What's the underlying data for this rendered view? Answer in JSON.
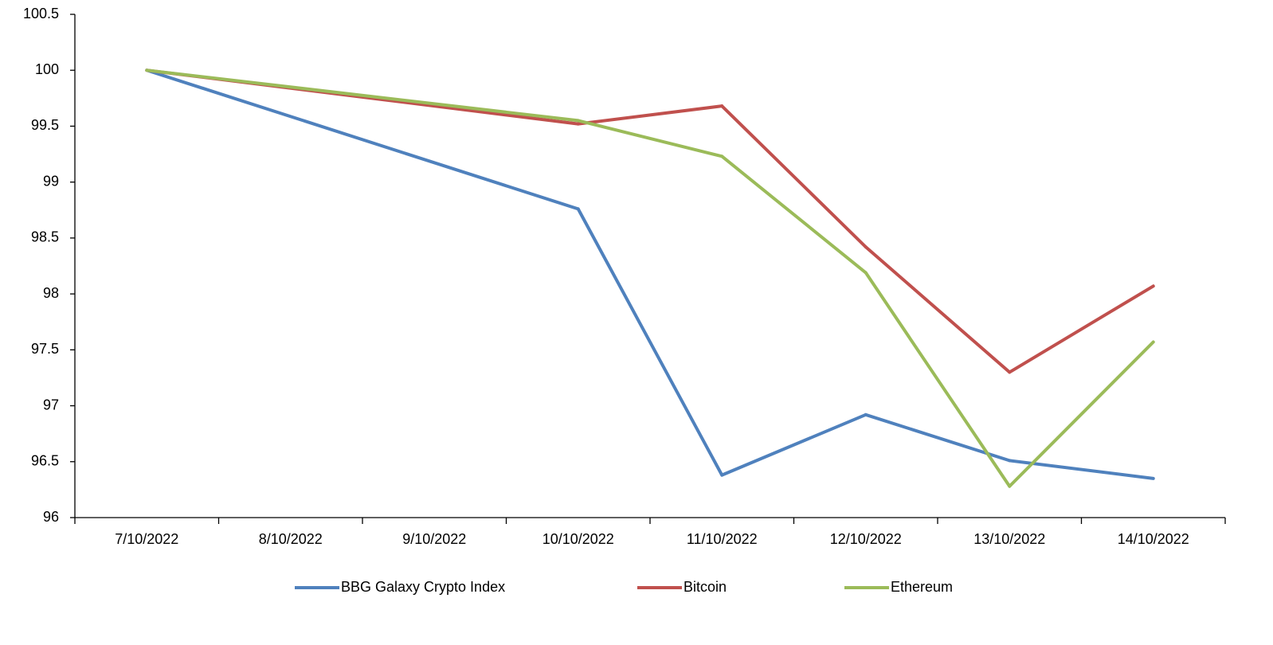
{
  "chart_data": {
    "type": "line",
    "categories": [
      "7/10/2022",
      "8/10/2022",
      "9/10/2022",
      "10/10/2022",
      "11/10/2022",
      "12/10/2022",
      "13/10/2022",
      "14/10/2022"
    ],
    "series": [
      {
        "name": "BBG Galaxy Crypto Index",
        "color": "#4f81bd",
        "values": [
          100,
          null,
          null,
          98.76,
          96.38,
          96.92,
          96.51,
          96.35
        ]
      },
      {
        "name": "Bitcoin",
        "color": "#c0504d",
        "values": [
          100,
          null,
          null,
          99.52,
          99.68,
          98.42,
          97.3,
          98.07
        ]
      },
      {
        "name": "Ethereum",
        "color": "#9bbb59",
        "values": [
          100,
          null,
          null,
          99.55,
          99.23,
          98.19,
          96.28,
          97.57
        ]
      }
    ],
    "connect_gaps": true,
    "ylim": [
      96,
      100.5
    ],
    "yticks": [
      96,
      96.5,
      97,
      97.5,
      98,
      98.5,
      99,
      99.5,
      100,
      100.5
    ],
    "grid": false,
    "legend": "bottom"
  }
}
